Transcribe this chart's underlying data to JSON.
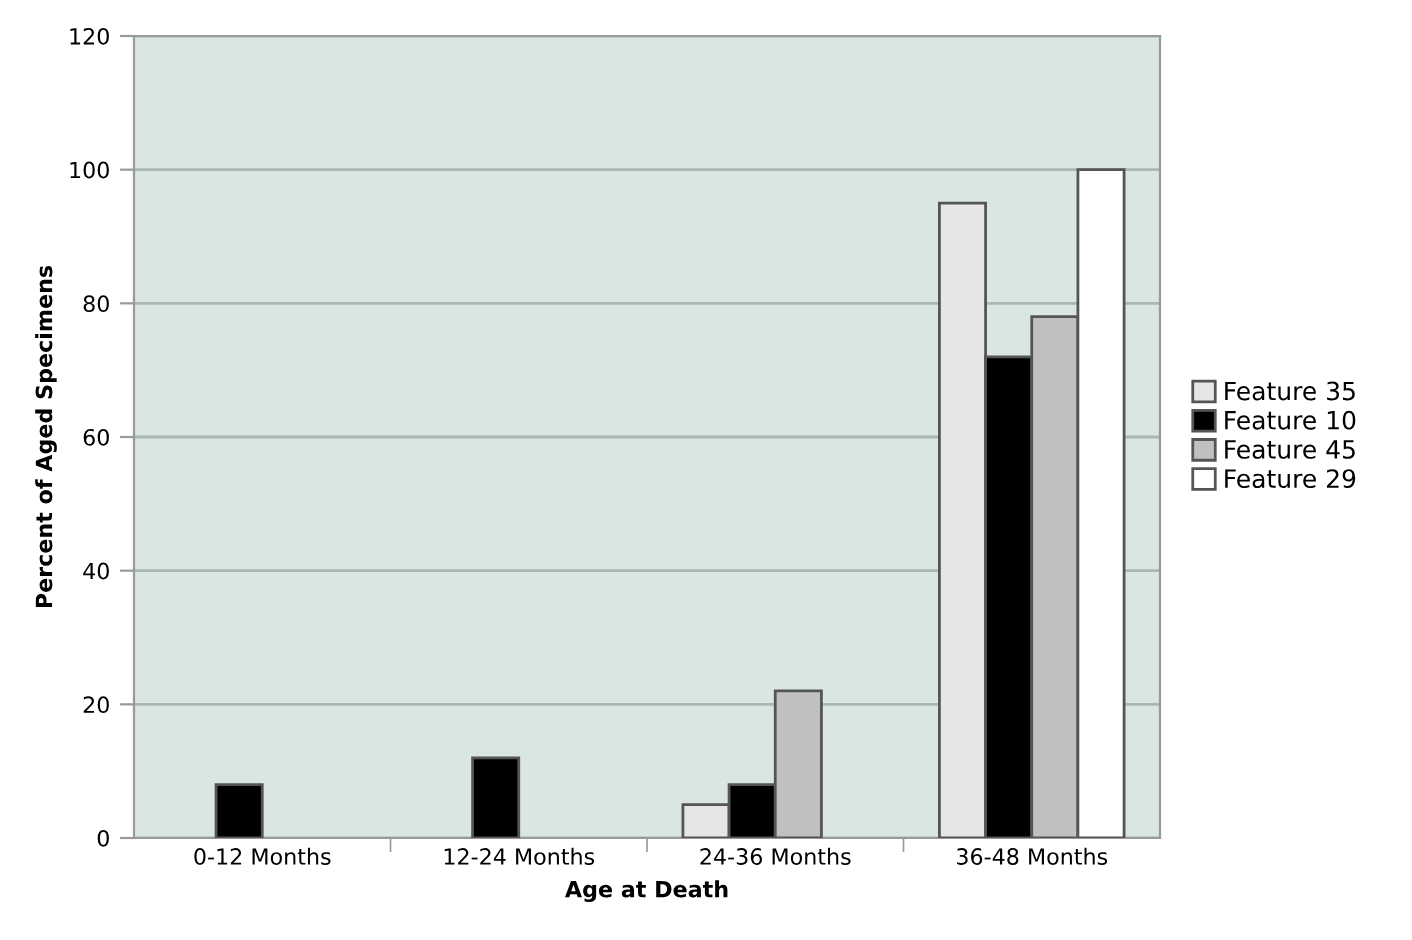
{
  "chart_data": {
    "type": "bar",
    "xlabel": "Age at Death",
    "ylabel": "Percent of Aged Specimens",
    "categories": [
      "0-12 Months",
      "12-24 Months",
      "24-36 Months",
      "36-48 Months"
    ],
    "series": [
      {
        "name": "Feature 35",
        "color": "#e6e6e6",
        "values": [
          null,
          null,
          5,
          95
        ]
      },
      {
        "name": "Feature 10",
        "color": "#000000",
        "values": [
          8,
          12,
          8,
          72
        ]
      },
      {
        "name": "Feature 45",
        "color": "#c0c0c0",
        "values": [
          null,
          null,
          22,
          78
        ]
      },
      {
        "name": "Feature 29",
        "color": "#ffffff",
        "values": [
          null,
          null,
          null,
          100
        ]
      }
    ],
    "ylim": [
      0,
      120
    ],
    "yticks": [
      0,
      20,
      40,
      60,
      80,
      100,
      120
    ],
    "grid": "y",
    "legend": "right"
  }
}
